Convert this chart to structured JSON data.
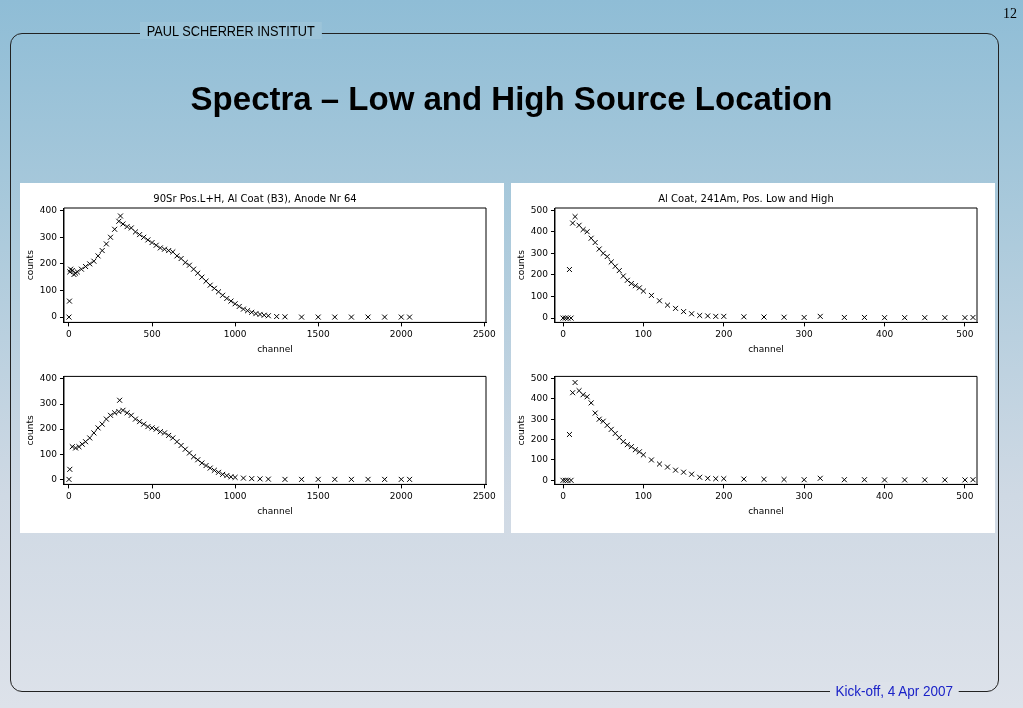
{
  "chart_data": [
    {
      "type": "other",
      "title": "Spectra – Low and High Source Location",
      "annotations": [
        "PAUL SCHERRER INSTITUT",
        "12",
        "Kick-off, 4 Apr 2007"
      ]
    },
    {
      "type": "scatter",
      "title": "90Sr Pos.L+H, Al Coat (B3), Anode Nr 64",
      "xlabel": "channel",
      "ylabel": "counts",
      "marker": "cross",
      "grid": false,
      "legend": false,
      "xlim": [
        -30,
        2510
      ],
      "ylim": [
        -20,
        410
      ],
      "xticks": [
        0,
        500,
        1000,
        1500,
        2000,
        2500
      ],
      "yticks": [
        0,
        100,
        200,
        300,
        400
      ],
      "x": [
        0,
        3,
        5,
        10,
        20,
        30,
        40,
        50,
        75,
        100,
        125,
        150,
        175,
        200,
        225,
        250,
        275,
        300,
        310,
        325,
        350,
        375,
        400,
        425,
        450,
        475,
        500,
        525,
        550,
        575,
        600,
        625,
        650,
        675,
        700,
        725,
        750,
        775,
        800,
        825,
        850,
        875,
        900,
        925,
        950,
        975,
        1000,
        1025,
        1050,
        1075,
        1100,
        1125,
        1150,
        1175,
        1200,
        1250,
        1300,
        1400,
        1500,
        1600,
        1700,
        1800,
        1900,
        2000,
        2050
      ],
      "series": [
        {
          "color": "#000000",
          "values": [
            0,
            60,
            170,
            180,
            175,
            160,
            165,
            170,
            180,
            190,
            200,
            210,
            230,
            250,
            275,
            300,
            330,
            360,
            380,
            350,
            340,
            335,
            320,
            310,
            300,
            290,
            280,
            270,
            260,
            255,
            250,
            245,
            230,
            220,
            205,
            195,
            180,
            165,
            150,
            135,
            120,
            108,
            95,
            82,
            70,
            60,
            50,
            40,
            30,
            24,
            18,
            13,
            10,
            7,
            5,
            2,
            1,
            0,
            0,
            0,
            0,
            0,
            0,
            0,
            0
          ]
        }
      ]
    },
    {
      "type": "scatter",
      "xlabel": "channel",
      "ylabel": "counts",
      "marker": "cross",
      "grid": false,
      "legend": false,
      "xlim": [
        -30,
        2510
      ],
      "ylim": [
        -20,
        410
      ],
      "xticks": [
        0,
        500,
        1000,
        1500,
        2000,
        2500
      ],
      "yticks": [
        0,
        100,
        200,
        300,
        400
      ],
      "x": [
        0,
        5,
        20,
        40,
        60,
        80,
        100,
        125,
        150,
        175,
        200,
        225,
        250,
        275,
        300,
        305,
        325,
        350,
        375,
        400,
        425,
        450,
        475,
        500,
        525,
        550,
        575,
        600,
        625,
        650,
        675,
        700,
        725,
        750,
        775,
        800,
        825,
        850,
        875,
        900,
        925,
        950,
        975,
        1000,
        1050,
        1100,
        1150,
        1200,
        1300,
        1400,
        1500,
        1600,
        1700,
        1800,
        1900,
        2000,
        2050
      ],
      "series": [
        {
          "color": "#000000",
          "values": [
            0,
            40,
            130,
            125,
            130,
            140,
            150,
            165,
            185,
            205,
            220,
            240,
            255,
            265,
            270,
            315,
            275,
            265,
            255,
            240,
            230,
            220,
            210,
            205,
            200,
            190,
            185,
            175,
            165,
            150,
            135,
            120,
            105,
            90,
            78,
            65,
            55,
            45,
            36,
            28,
            20,
            15,
            10,
            8,
            5,
            3,
            2,
            1,
            0,
            0,
            0,
            0,
            0,
            0,
            0,
            0,
            0
          ]
        }
      ]
    },
    {
      "type": "scatter",
      "title": "Al Coat, 241Am, Pos. Low and High",
      "xlabel": "channel",
      "ylabel": "counts",
      "marker": "cross",
      "grid": false,
      "legend": false,
      "xlim": [
        -10,
        515
      ],
      "ylim": [
        -20,
        510
      ],
      "xticks": [
        0,
        100,
        200,
        300,
        400,
        500
      ],
      "yticks": [
        0,
        100,
        200,
        300,
        400,
        500
      ],
      "x": [
        0,
        3,
        6,
        8,
        10,
        12,
        15,
        20,
        25,
        30,
        35,
        40,
        45,
        50,
        55,
        60,
        65,
        70,
        75,
        80,
        85,
        90,
        95,
        100,
        110,
        120,
        130,
        140,
        150,
        160,
        170,
        180,
        190,
        200,
        225,
        250,
        275,
        300,
        320,
        350,
        375,
        400,
        425,
        450,
        475,
        500,
        510
      ],
      "series": [
        {
          "color": "#000000",
          "values": [
            0,
            0,
            0,
            225,
            0,
            440,
            470,
            430,
            410,
            400,
            370,
            350,
            320,
            300,
            285,
            260,
            240,
            220,
            195,
            175,
            160,
            150,
            140,
            125,
            105,
            80,
            60,
            45,
            30,
            20,
            12,
            10,
            8,
            8,
            6,
            5,
            4,
            3,
            8,
            3,
            3,
            2,
            2,
            2,
            2,
            2,
            3
          ]
        }
      ]
    },
    {
      "type": "scatter",
      "xlabel": "channel",
      "ylabel": "counts",
      "marker": "cross",
      "grid": false,
      "legend": false,
      "xlim": [
        -10,
        515
      ],
      "ylim": [
        -20,
        510
      ],
      "xticks": [
        0,
        100,
        200,
        300,
        400,
        500
      ],
      "yticks": [
        0,
        100,
        200,
        300,
        400,
        500
      ],
      "x": [
        0,
        3,
        6,
        8,
        10,
        12,
        15,
        20,
        25,
        30,
        35,
        40,
        45,
        50,
        55,
        60,
        65,
        70,
        75,
        80,
        85,
        90,
        95,
        100,
        110,
        120,
        130,
        140,
        150,
        160,
        170,
        180,
        190,
        200,
        225,
        250,
        275,
        300,
        320,
        350,
        375,
        400,
        425,
        450,
        475,
        500,
        510
      ],
      "series": [
        {
          "color": "#000000",
          "values": [
            0,
            0,
            0,
            225,
            0,
            430,
            480,
            440,
            420,
            410,
            380,
            330,
            300,
            290,
            270,
            250,
            230,
            210,
            190,
            175,
            165,
            150,
            140,
            125,
            100,
            80,
            65,
            50,
            40,
            30,
            15,
            10,
            8,
            8,
            6,
            5,
            4,
            3,
            10,
            3,
            3,
            2,
            2,
            2,
            2,
            2,
            3
          ]
        }
      ]
    }
  ]
}
